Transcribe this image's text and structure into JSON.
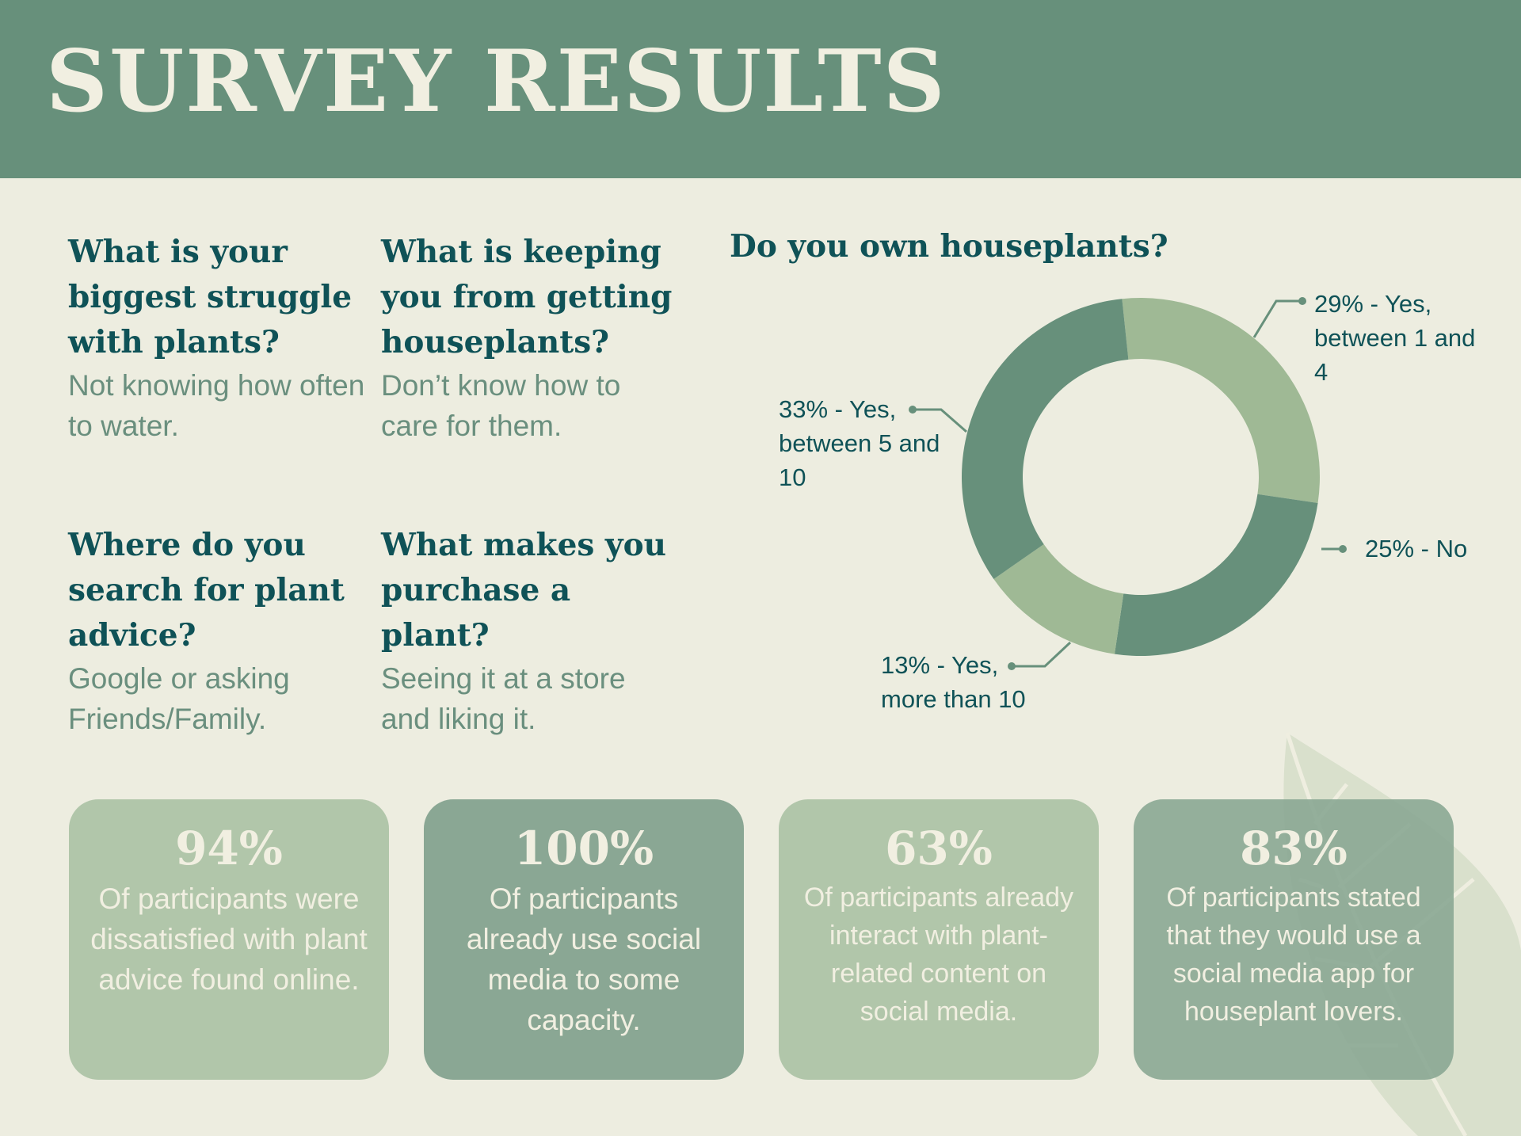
{
  "header": {
    "title": "SURVEY RESULTS"
  },
  "questions": [
    {
      "question": "What is your biggest struggle with plants?",
      "answer": "Not knowing how often to water."
    },
    {
      "question": "What is keeping you from getting houseplants?",
      "answer": "Don’t know how to care for them."
    },
    {
      "question": "Where do you search for plant advice?",
      "answer": "Google or asking Friends/Family."
    },
    {
      "question": "What makes you purchase a plant?",
      "answer": "Seeing it at a store and liking it."
    }
  ],
  "chart_data": {
    "type": "donut",
    "title": "Do you own houseplants?",
    "values": [
      29,
      25,
      13,
      33
    ],
    "labels": [
      "29% - Yes, between 1 and 4",
      "25% - No",
      "13% - Yes, more than 10",
      "33% - Yes, between 5 and 10"
    ],
    "colors": [
      "#9fb995",
      "#67907b",
      "#9fb995",
      "#67907b"
    ]
  },
  "stats": [
    {
      "percent": "94%",
      "text": "Of participants were dissatisfied with plant advice found online."
    },
    {
      "percent": "100%",
      "text": "Of participants already use social media to some capacity."
    },
    {
      "percent": "63%",
      "text": "Of participants already interact with plant-related content on social media."
    },
    {
      "percent": "83%",
      "text": "Of participants stated that they would use a social media app for houseplant lovers."
    }
  ]
}
